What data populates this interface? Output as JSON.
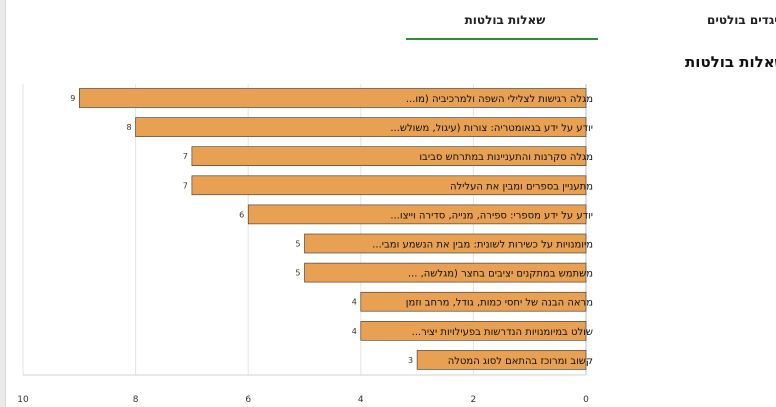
{
  "tabs": [
    {
      "label": "שאלות בולטות",
      "active": true
    },
    {
      "label": "היגדים בולטים",
      "active": false
    }
  ],
  "accent_color": "#2e8b3a",
  "bar_color": "#e8a052",
  "chart_data": {
    "type": "bar",
    "orientation": "horizontal",
    "title": "שאלות בולטות",
    "categories": [
      "מגלה רגישות לצלילי השפה ולמרכיביה (מו...",
      "יודע על ידע בגאומטריה: צורות (עיגול, משולש...",
      "מגלה סקרנות והתעניינות במתרחש סביבו",
      "מתעניין בספרים ומבין את העלילה",
      "יודע על ידע מספרי: ספירה, מנייה, סדירה וייצו...",
      "מיומנויות על כשירות לשונית: מבין את הנשמע ומבי...",
      "משתמש במתקנים יציבים בחצר (מגלשה, ...",
      "מראה הבנה של יחסי כמות, גודל, מרחב וזמן",
      "שולט במיומנויות הנדרשות בפעילויות יציר...",
      "קשוב ומרוכז בהתאם לסוג המטלה"
    ],
    "values": [
      9,
      8,
      7,
      7,
      6,
      5,
      5,
      4,
      4,
      3
    ],
    "xlim": [
      0,
      10
    ],
    "xticks": [
      0,
      2,
      4,
      6,
      8,
      10
    ],
    "x_axis_reversed": true,
    "grid": true
  }
}
